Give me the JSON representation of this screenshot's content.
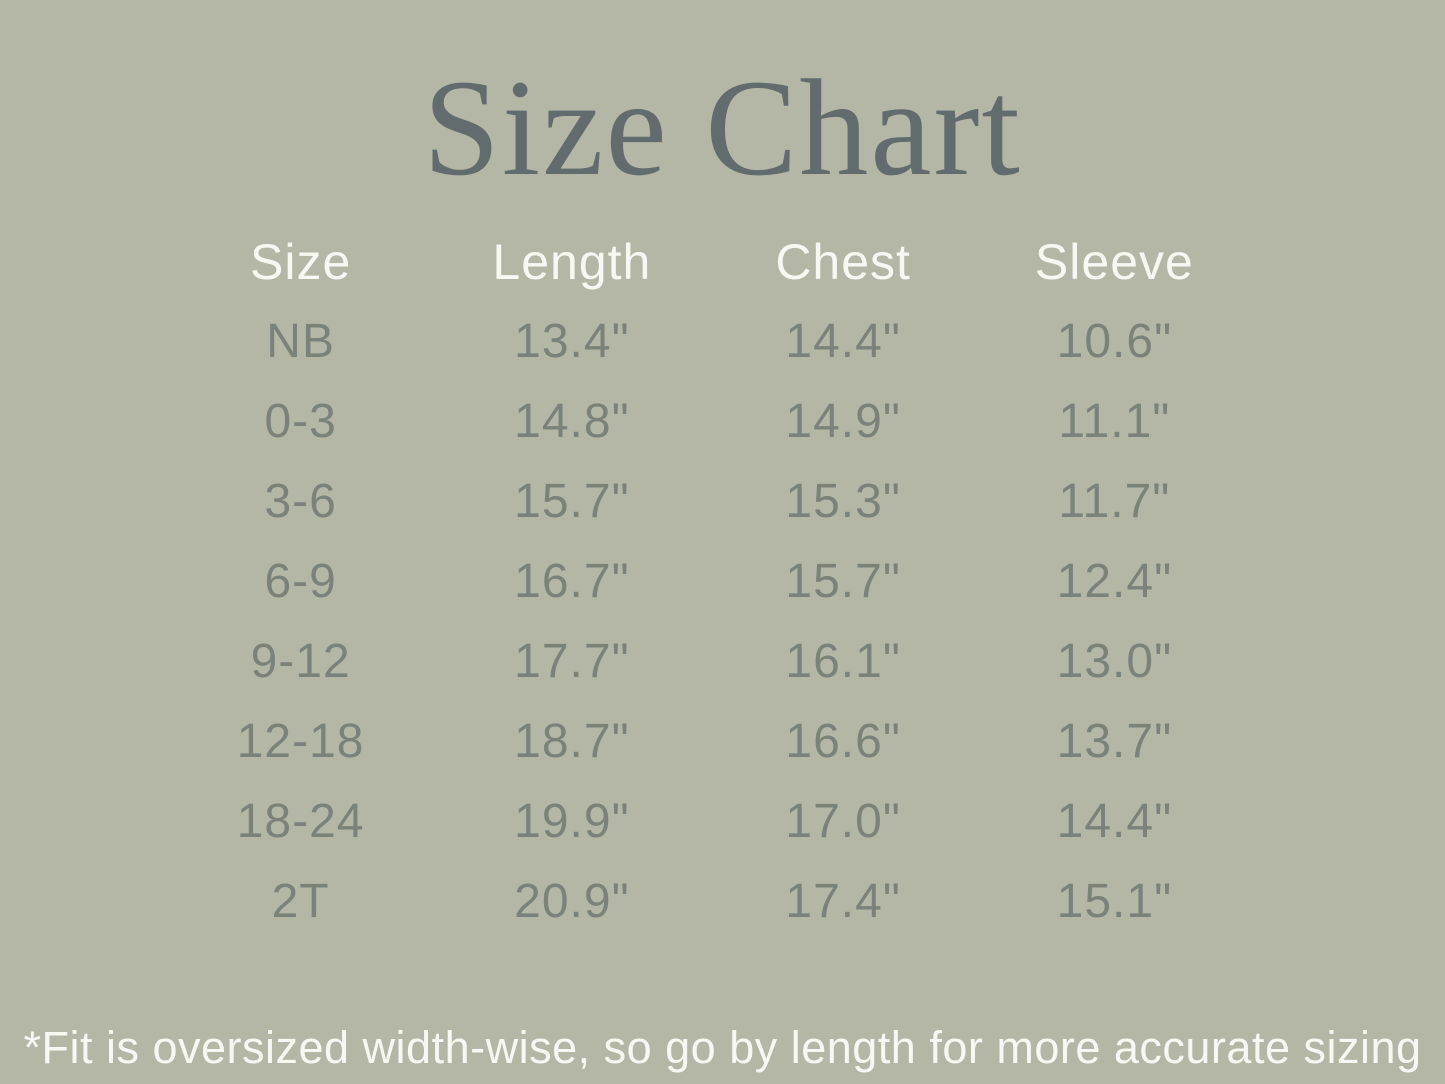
{
  "page": {
    "background_color": "#b4b7a5",
    "title_color": "#626b6d",
    "header_text_color": "#f8f8f3",
    "value_text_color": "#7a827a"
  },
  "title": "Size Chart",
  "table": {
    "headers": [
      "Size",
      "Length",
      "Chest",
      "Sleeve"
    ],
    "rows": [
      [
        "NB",
        "13.4\"",
        "14.4\"",
        "10.6\""
      ],
      [
        "0-3",
        "14.8\"",
        "14.9\"",
        "11.1\""
      ],
      [
        "3-6",
        "15.7\"",
        "15.3\"",
        "11.7\""
      ],
      [
        "6-9",
        "16.7\"",
        "15.7\"",
        "12.4\""
      ],
      [
        "9-12",
        "17.7\"",
        "16.1\"",
        "13.0\""
      ],
      [
        "12-18",
        "18.7\"",
        "16.6\"",
        "13.7\""
      ],
      [
        "18-24",
        "19.9\"",
        "17.0\"",
        "14.4\""
      ],
      [
        "2T",
        "20.9\"",
        "17.4\"",
        "15.1\""
      ]
    ]
  },
  "footnote": "*Fit is oversized width-wise, so go by length for more accurate sizing",
  "chart_data": {
    "type": "table",
    "title": "Size Chart",
    "columns": [
      "Size",
      "Length (in)",
      "Chest (in)",
      "Sleeve (in)"
    ],
    "rows": [
      {
        "size": "NB",
        "length": 13.4,
        "chest": 14.4,
        "sleeve": 10.6
      },
      {
        "size": "0-3",
        "length": 14.8,
        "chest": 14.9,
        "sleeve": 11.1
      },
      {
        "size": "3-6",
        "length": 15.7,
        "chest": 15.3,
        "sleeve": 11.7
      },
      {
        "size": "6-9",
        "length": 16.7,
        "chest": 15.7,
        "sleeve": 12.4
      },
      {
        "size": "9-12",
        "length": 17.7,
        "chest": 16.1,
        "sleeve": 13.0
      },
      {
        "size": "12-18",
        "length": 18.7,
        "chest": 16.6,
        "sleeve": 13.7
      },
      {
        "size": "18-24",
        "length": 19.9,
        "chest": 17.0,
        "sleeve": 14.4
      },
      {
        "size": "2T",
        "length": 20.9,
        "chest": 17.4,
        "sleeve": 15.1
      }
    ],
    "annotations": [
      "*Fit is oversized width-wise, so go by length for more accurate sizing"
    ]
  }
}
